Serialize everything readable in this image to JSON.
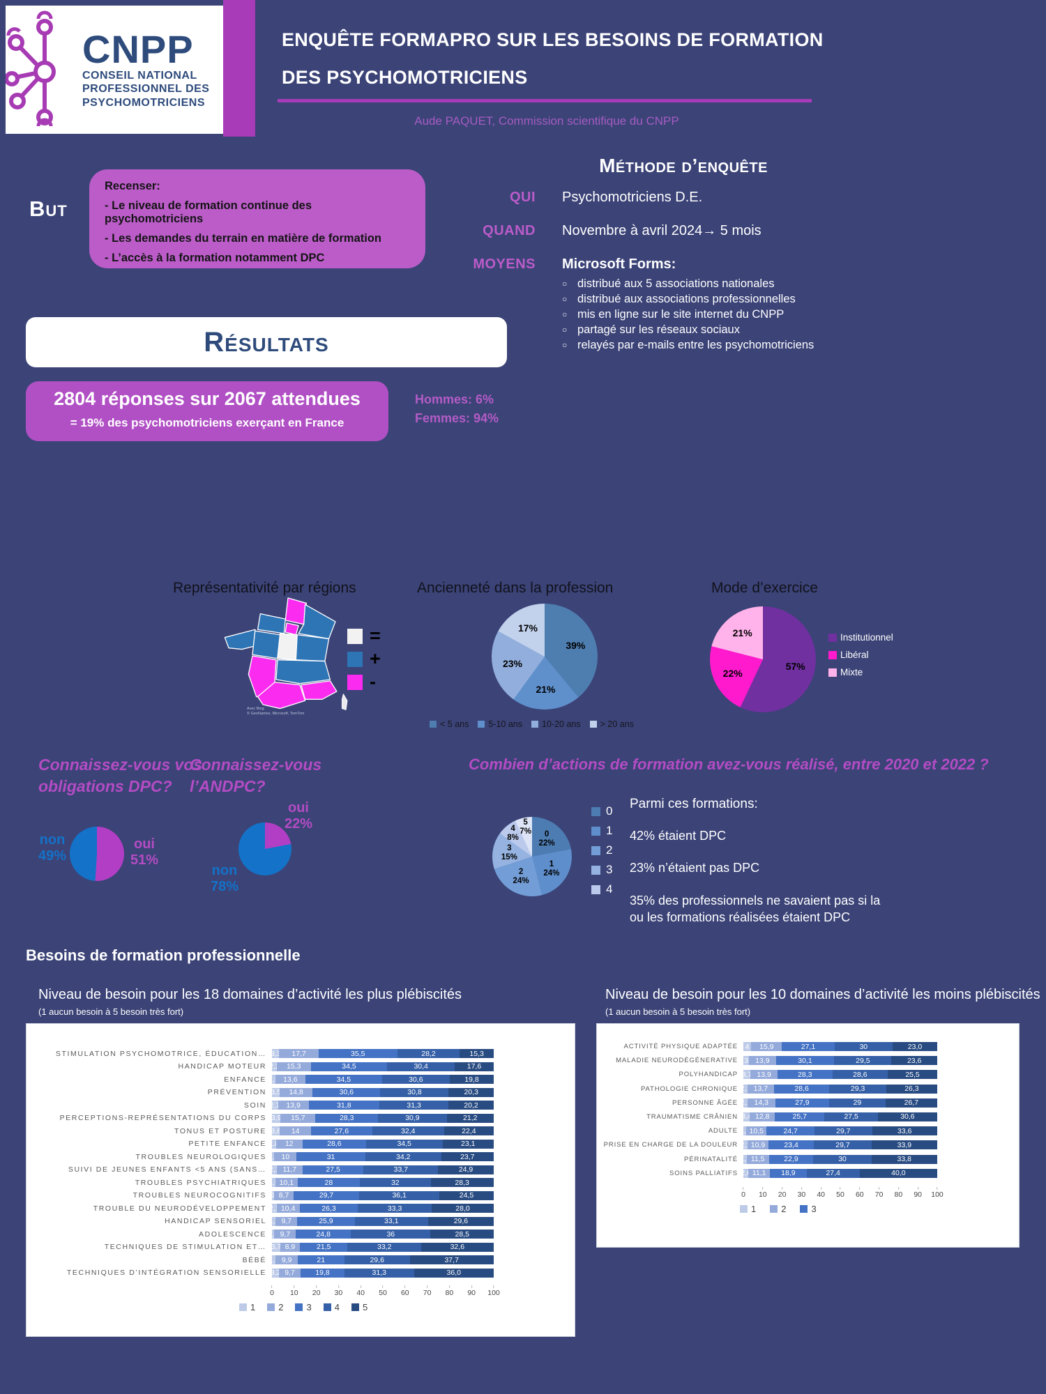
{
  "colors": {
    "page_bg": "#3B4377",
    "accent_purple": "#A83CB8",
    "box_purple": "#BB5CC9",
    "badge_purple": "#B150C5",
    "question_purple": "#B44CC4",
    "navy": "#2E4B7C",
    "blue_non": "#1472C8",
    "map_blue": "#2E75B6",
    "map_magenta": "#FB2BF0",
    "map_white": "#F2F2F2"
  },
  "header": {
    "logo_acronym": "CNPP",
    "logo_org1": "CONSEIL NATIONAL",
    "logo_org2": "PROFESSIONNEL DES",
    "logo_org3": "PSYCHOMOTRICIENS",
    "title_line1": "ENQUÊTE FORMAPRO SUR LES BESOINS DE FORMATION",
    "title_line2": "DES PSYCHOMOTRICIENS",
    "subtitle": "Aude PAQUET, Commission scientifique du CNPP"
  },
  "but": {
    "label": "But",
    "intro": "Recenser:",
    "items": [
      "- Le niveau de formation continue des psychomotriciens",
      "- Les demandes du terrain en matière de formation",
      "- L’accès à la formation notamment DPC"
    ]
  },
  "methode": {
    "title": "Méthode d’enquête",
    "qui_label": "QUI",
    "qui_value": "Psychomotriciens D.E.",
    "quand_label": "QUAND",
    "quand_value": "Novembre à avril 2024→ 5 mois",
    "moyens_label": "MOYENS",
    "moyens_value": "Microsoft Forms:",
    "bullets": [
      "distribué aux 5 associations nationales",
      "distribué aux associations professionnelles",
      "mis en ligne sur le site internet du CNPP",
      "partagé sur les réseaux sociaux",
      "relayés par e-mails entre les psychomotriciens"
    ]
  },
  "resultats": {
    "banner": "Résultats"
  },
  "reponses": {
    "line1": "2804 réponses sur 2067 attendues",
    "line2": "= 19% des psychomotriciens exerçant en France",
    "hommes": "Hommes: 6%",
    "femmes": "Femmes: 94%"
  },
  "regions": {
    "title": "Représentativité par régions",
    "legend": [
      {
        "symbol": "=",
        "color": "#F2F2F2"
      },
      {
        "symbol": "+",
        "color": "#2E75B6"
      },
      {
        "symbol": "-",
        "color": "#FB2BF0"
      }
    ],
    "attribution1": "Avec Bing",
    "attribution2": "© GeoNames, Microsoft, TomTom"
  },
  "dpc": {
    "q1_question": "Connaissez-vous vos obligations DPC?",
    "q1_oui": "oui",
    "q1_oui_pct": "51%",
    "q1_non": "non",
    "q1_non_pct": "49%",
    "q2_question": "Connaissez-vous l’ANDPC?",
    "q2_oui": "oui",
    "q2_oui_pct": "22%",
    "q2_non": "non",
    "q2_non_pct": "78%",
    "q3_question": "Combien d’actions de formation avez-vous réalisé, entre 2020 et 2022 ?"
  },
  "parmi": {
    "title": "Parmi ces formations:",
    "items": [
      "42% étaient DPC",
      "23% n’étaient pas DPC",
      "35% des professionnels ne savaient pas si la ou les formations réalisées étaient DPC"
    ]
  },
  "besoins": {
    "header": "Besoins de formation professionnelle"
  },
  "chart_data": [
    {
      "id": "anciennete",
      "type": "pie",
      "title": "Ancienneté dans la profession",
      "labels": [
        "< 5 ans",
        "5-10 ans",
        "10-20 ans",
        "> 20 ans"
      ],
      "values": [
        39,
        21,
        23,
        17
      ],
      "plabels": [
        "39%",
        "21%",
        "23%",
        "17%"
      ],
      "colors": [
        "#4E7DB0",
        "#5F90CC",
        "#92AEDC",
        "#C2D2EC"
      ],
      "label_r": 0.62,
      "legend_position": "bottom"
    },
    {
      "id": "mode_exercice",
      "type": "pie",
      "title": "Mode d’exercice",
      "labels": [
        "Institutionnel",
        "Libéral",
        "Mixte"
      ],
      "values": [
        57,
        22,
        21
      ],
      "plabels": [
        "57%",
        "22%",
        "21%"
      ],
      "colors": [
        "#7030A0",
        "#FF1ACE",
        "#FFB3EA"
      ],
      "label_r": 0.63,
      "legend_position": "right"
    },
    {
      "id": "obligations_dpc",
      "type": "pie",
      "labels": [
        "oui",
        "non"
      ],
      "values": [
        51,
        49
      ],
      "colors": [
        "#B13EC5",
        "#1472C8"
      ]
    },
    {
      "id": "andpc",
      "type": "pie",
      "labels": [
        "oui",
        "non"
      ],
      "values": [
        22,
        78
      ],
      "colors": [
        "#B13EC5",
        "#1472C8"
      ]
    },
    {
      "id": "actions",
      "type": "pie",
      "cats": [
        "0",
        "1",
        "2",
        "3",
        "4",
        "5"
      ],
      "values": [
        22,
        24,
        24,
        15,
        8,
        7
      ],
      "plabels": [
        "22%",
        "24%",
        "24%",
        "15%",
        "8%",
        "7%"
      ],
      "colors": [
        "#4D7CB2",
        "#5E8ECB",
        "#739DD6",
        "#95B2E0",
        "#BBCAEC",
        "#DCE4F6"
      ],
      "label_r": 0.58,
      "legend": [
        "0",
        "1",
        "2",
        "3",
        "4"
      ]
    },
    {
      "id": "besoins_plus",
      "type": "bar",
      "stacked": true,
      "title": "Niveau de besoin pour les 18 domaines d’activité les plus plébiscités",
      "subtitle": "(1 aucun besoin à 5 besoin très fort)",
      "legend": [
        "1",
        "2",
        "3",
        "4",
        "5"
      ],
      "colors": [
        "#BDCBE9",
        "#94AADB",
        "#4472C4",
        "#3560A7",
        "#284B82"
      ],
      "x_ticks": [
        "0",
        "10",
        "20",
        "30",
        "40",
        "50",
        "60",
        "70",
        "80",
        "90",
        "100"
      ],
      "xlim": [
        0,
        100
      ],
      "rows": [
        {
          "label": "STIMULATION PSYCHOMOTRICE, ÉDUCATION…",
          "values": [
            3.3,
            17.7,
            35.5,
            28.2,
            15.3
          ],
          "labels": [
            "3,3",
            "17,7",
            "35,5",
            "28,2",
            "15,3"
          ]
        },
        {
          "label": "HANDICAP MOTEUR",
          "values": [
            2.2,
            15.3,
            34.5,
            30.4,
            17.6
          ],
          "labels": [
            "2,2",
            "15,3",
            "34,5",
            "30,4",
            "17,6"
          ]
        },
        {
          "label": "ENFANCE",
          "values": [
            1.5,
            13.6,
            34.5,
            30.6,
            19.8
          ],
          "labels": [
            "1,5",
            "13,6",
            "34,5",
            "30,6",
            "19,8"
          ]
        },
        {
          "label": "PRÉVENTION",
          "values": [
            3.5,
            14.8,
            30.6,
            30.8,
            20.3
          ],
          "labels": [
            "3,5",
            "14,8",
            "30,6",
            "30,8",
            "20,3"
          ]
        },
        {
          "label": "SOIN",
          "values": [
            2.7,
            13.9,
            31.8,
            31.3,
            20.2
          ],
          "labels": [
            "2,7",
            "13,9",
            "31,8",
            "31,3",
            "20,2"
          ]
        },
        {
          "label": "PERCEPTIONS-REPRÉSENTATIONS DU CORPS",
          "values": [
            3.9,
            15.7,
            28.3,
            30.9,
            21.2
          ],
          "labels": [
            "3,9",
            "15,7",
            "28,3",
            "30,9",
            "21,2"
          ]
        },
        {
          "label": "TONUS ET POSTURE",
          "values": [
            3.6,
            14,
            27.6,
            32.4,
            22.4
          ],
          "labels": [
            "3,6",
            "14",
            "27,6",
            "32,4",
            "22,4"
          ]
        },
        {
          "label": "PETITE ENFANCE",
          "values": [
            1.8,
            12,
            28.6,
            34.5,
            23.1
          ],
          "labels": [
            "1,8",
            "12",
            "28,6",
            "34,5",
            "23,1"
          ]
        },
        {
          "label": "TROUBLES NEUROLOGIQUES",
          "values": [
            1.1,
            10,
            31,
            34.2,
            23.7
          ],
          "labels": [
            "1,1",
            "10",
            "31",
            "34,2",
            "23,7"
          ]
        },
        {
          "label": "SUIVI DE JEUNES ENFANTS <5 ANS (SANS…",
          "values": [
            2.1,
            11.7,
            27.5,
            33.7,
            24.9
          ],
          "labels": [
            "2,1",
            "11,7",
            "27,5",
            "33,7",
            "24,9"
          ]
        },
        {
          "label": "TROUBLES PSYCHIATRIQUES",
          "values": [
            1.5,
            10.1,
            28,
            32,
            28.3
          ],
          "labels": [
            "1,5",
            "10,1",
            "28",
            "32",
            "28,3"
          ]
        },
        {
          "label": "TROUBLES NEUROCOGNITIFS",
          "values": [
            1,
            8.7,
            29.7,
            36.1,
            24.5
          ],
          "labels": [
            "1",
            "8,7",
            "29,7",
            "36,1",
            "24,5"
          ]
        },
        {
          "label": "TROUBLE DU NEURODÉVELOPPEMENT",
          "values": [
            2.1,
            10.4,
            26.3,
            33.3,
            28.0
          ],
          "labels": [
            "2,1",
            "10,4",
            "26,3",
            "33,3",
            "28,0"
          ]
        },
        {
          "label": "HANDICAP SENSORIEL",
          "values": [
            1.7,
            9.7,
            25.9,
            33.1,
            29.6
          ],
          "labels": [
            "1,7",
            "9,7",
            "25,9",
            "33,1",
            "29,6"
          ]
        },
        {
          "label": "ADOLESCENCE",
          "values": [
            1.1,
            9.7,
            24.8,
            36,
            28.5
          ],
          "labels": [
            "1,1",
            "9,7",
            "24,8",
            "36",
            "28,5"
          ]
        },
        {
          "label": "TECHNIQUES DE STIMULATION ET…",
          "values": [
            3.7,
            8.9,
            21.5,
            33.2,
            32.6
          ],
          "labels": [
            "3,7",
            "8,9",
            "21,5",
            "33,2",
            "32,6"
          ]
        },
        {
          "label": "BÉBÉ",
          "values": [
            1.7,
            9.9,
            21,
            29.6,
            37.7
          ],
          "labels": [
            "1,7",
            "9,9",
            "21",
            "29,6",
            "37,7"
          ]
        },
        {
          "label": "TECHNIQUES D’INTÉGRATION SENSORIELLE",
          "values": [
            3.2,
            9.7,
            19.8,
            31.3,
            36.0
          ],
          "labels": [
            "3,2",
            "9,7",
            "19,8",
            "31,3",
            "36,0"
          ]
        }
      ]
    },
    {
      "id": "besoins_moins",
      "type": "bar",
      "stacked": true,
      "title": "Niveau de besoin pour les 10 domaines d’activité les moins plébiscités",
      "subtitle": "(1 aucun besoin à 5 besoin très fort)",
      "legend": [
        "1",
        "2",
        "3"
      ],
      "colors": [
        "#BDCBE9",
        "#94AADB",
        "#4472C4",
        "#3560A7",
        "#284B82"
      ],
      "x_ticks": [
        "0",
        "10",
        "20",
        "30",
        "40",
        "50",
        "60",
        "70",
        "80",
        "90",
        "100"
      ],
      "xlim": [
        0,
        100
      ],
      "rows": [
        {
          "label": "ACTIVITÉ PHYSIQUE ADAPTÉE",
          "values": [
            4,
            15.9,
            27.1,
            30,
            23.0
          ],
          "labels": [
            "4",
            "15,9",
            "27,1",
            "30",
            "23,0"
          ]
        },
        {
          "label": "MALADIE NEURODÉGÉNERATIVE",
          "values": [
            2.9,
            13.9,
            30.1,
            29.5,
            23.6
          ],
          "labels": [
            "3",
            "13,9",
            "30,1",
            "29,5",
            "23,6"
          ]
        },
        {
          "label": "POLYHANDICAP",
          "values": [
            3.7,
            13.9,
            28.3,
            28.6,
            25.5
          ],
          "labels": [
            "3,7",
            "13,9",
            "28,3",
            "28,6",
            "25,5"
          ]
        },
        {
          "label": "PATHOLOGIE CHRONIQUE",
          "values": [
            2.1,
            13.7,
            28.6,
            29.3,
            26.3
          ],
          "labels": [
            "2,1",
            "13,7",
            "28,6",
            "29,3",
            "26,3"
          ]
        },
        {
          "label": "PERSONNE ÂGÉE",
          "values": [
            2.1,
            14.3,
            27.9,
            29,
            26.7
          ],
          "labels": [
            "2,1",
            "14,3",
            "27,9",
            "29",
            "26,7"
          ]
        },
        {
          "label": "TRAUMATISME CRÂNIEN",
          "values": [
            3.4,
            12.8,
            25.7,
            27.5,
            30.6
          ],
          "labels": [
            "3,4",
            "12,8",
            "25,7",
            "27,5",
            "30,6"
          ]
        },
        {
          "label": "ADULTE",
          "values": [
            1.5,
            10.5,
            24.7,
            29.7,
            33.6
          ],
          "labels": [
            "1,5",
            "10,5",
            "24,7",
            "29,7",
            "33,6"
          ]
        },
        {
          "label": "PRISE EN CHARGE DE LA DOULEUR",
          "values": [
            2.1,
            10.9,
            23.4,
            29.7,
            33.9
          ],
          "labels": [
            "2,1",
            "10,9",
            "23,4",
            "29,7",
            "33,9"
          ]
        },
        {
          "label": "PÉRINATALITÉ",
          "values": [
            1.7,
            11.5,
            22.9,
            30,
            33.8
          ],
          "labels": [
            "1,7",
            "11,5",
            "22,9",
            "30",
            "33,8"
          ]
        },
        {
          "label": "SOINS PALLIATIFS",
          "values": [
            2.6,
            11.1,
            18.9,
            27.4,
            40.0
          ],
          "labels": [
            "2,6",
            "11,1",
            "18,9",
            "27,4",
            "40,0"
          ]
        }
      ]
    }
  ]
}
